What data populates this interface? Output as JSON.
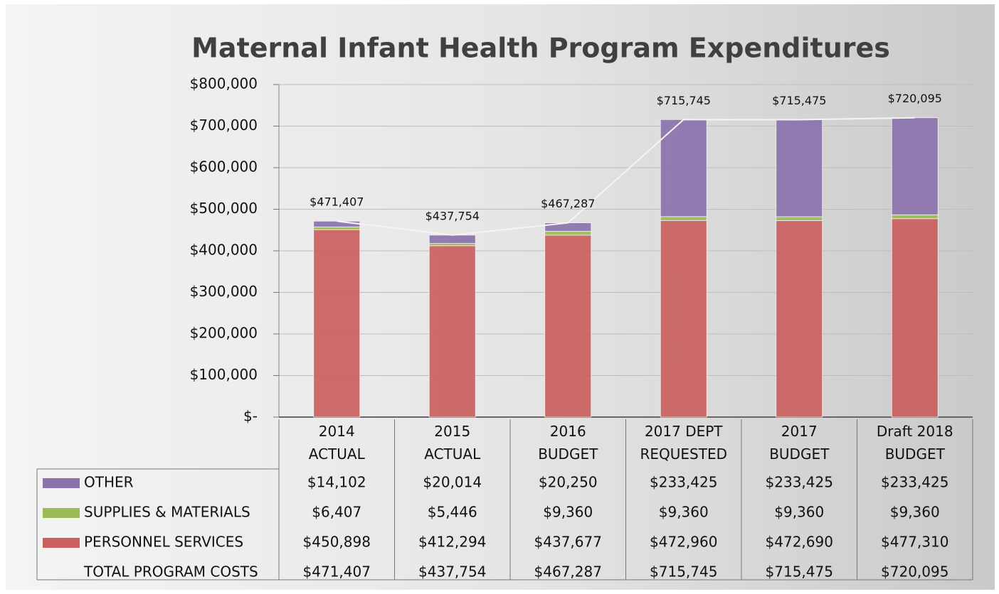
{
  "chart_data": {
    "type": "bar",
    "title": "Maternal Infant Health Program Expenditures",
    "categories": [
      "2014 ACTUAL",
      "2015 ACTUAL",
      "2016 BUDGET",
      "2017 DEPT REQUESTED",
      "2017 BUDGET",
      "Draft 2018 BUDGET"
    ],
    "stacked": true,
    "series": [
      {
        "name": "OTHER",
        "color": "#8a72ab",
        "values": [
          14102,
          20014,
          20250,
          233425,
          233425,
          233425
        ],
        "value_labels": [
          "$14,102",
          "$20,014",
          "$20,250",
          "$233,425",
          "$233,425",
          "$233,425"
        ]
      },
      {
        "name": "SUPPLIES & MATERIALS",
        "color": "#9bbb59",
        "values": [
          6407,
          5446,
          9360,
          9360,
          9360,
          9360
        ],
        "value_labels": [
          "$6,407",
          "$5,446",
          "$9,360",
          "$9,360",
          "$9,360",
          "$9,360"
        ]
      },
      {
        "name": "PERSONNEL SERVICES",
        "color": "#c9605d",
        "values": [
          450898,
          412294,
          437677,
          472960,
          472690,
          477310
        ],
        "value_labels": [
          "$450,898",
          "$412,294",
          "$437,677",
          "$472,960",
          "$472,690",
          "$477,310"
        ]
      },
      {
        "name": "TOTAL PROGRAM COSTS",
        "type": "line",
        "color": "#f4f4f4",
        "values": [
          471407,
          437754,
          467287,
          715745,
          715475,
          720095
        ],
        "value_labels": [
          "$471,407",
          "$437,754",
          "$467,287",
          "$715,745",
          "$715,475",
          "$720,095"
        ]
      }
    ],
    "ylim": [
      0,
      800000
    ],
    "yticks": [
      {
        "value": 0,
        "label": "$-"
      },
      {
        "value": 100000,
        "label": "$100,000"
      },
      {
        "value": 200000,
        "label": "$200,000"
      },
      {
        "value": 300000,
        "label": "$300,000"
      },
      {
        "value": 400000,
        "label": "$400,000"
      },
      {
        "value": 500000,
        "label": "$500,000"
      },
      {
        "value": 600000,
        "label": "$600,000"
      },
      {
        "value": 700000,
        "label": "$700,000"
      },
      {
        "value": 800000,
        "label": "$800,000"
      }
    ],
    "grid": true
  }
}
